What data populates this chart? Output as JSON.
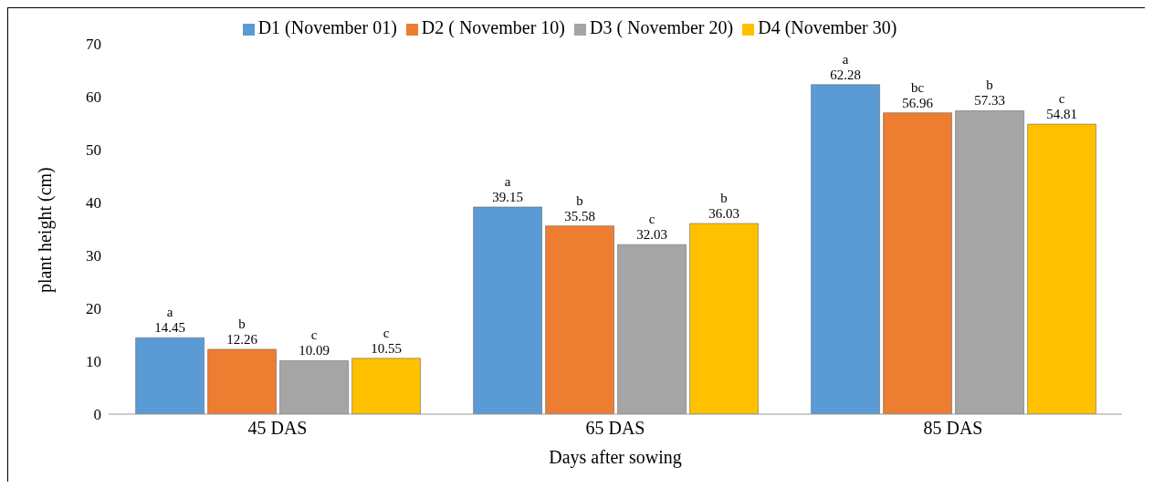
{
  "chart_data": {
    "type": "bar",
    "xlabel": "Days after sowing",
    "ylabel": "plant height (cm)",
    "categories": [
      "45 DAS",
      "65 DAS",
      "85 DAS"
    ],
    "series": [
      {
        "name": "D1 (November 01)",
        "color": "#5b9bd5",
        "values": [
          14.45,
          39.15,
          62.28
        ],
        "value_labels": [
          "a\n14.45",
          "a\n39.15",
          "a\n62.28"
        ]
      },
      {
        "name": "D2 ( November 10)",
        "color": "#ed7d31",
        "values": [
          12.26,
          35.58,
          56.96
        ],
        "value_labels": [
          "b\n12.26",
          "b\n35.58",
          "bc\n56.96"
        ]
      },
      {
        "name": "D3 ( November 20)",
        "color": "#a5a5a5",
        "values": [
          10.09,
          32.03,
          57.33
        ],
        "value_labels": [
          "c\n10.09",
          "c\n32.03",
          "b\n57.33"
        ]
      },
      {
        "name": "D4 (November 30)",
        "color": "#ffc000",
        "values": [
          10.55,
          36.03,
          54.81
        ],
        "value_labels": [
          "c\n10.55",
          "b\n36.03",
          "c\n54.81"
        ]
      }
    ],
    "ylim": [
      0,
      70
    ],
    "yticks": [
      0,
      10,
      20,
      30,
      40,
      50,
      60,
      70
    ],
    "grid": false,
    "legend": "top"
  }
}
